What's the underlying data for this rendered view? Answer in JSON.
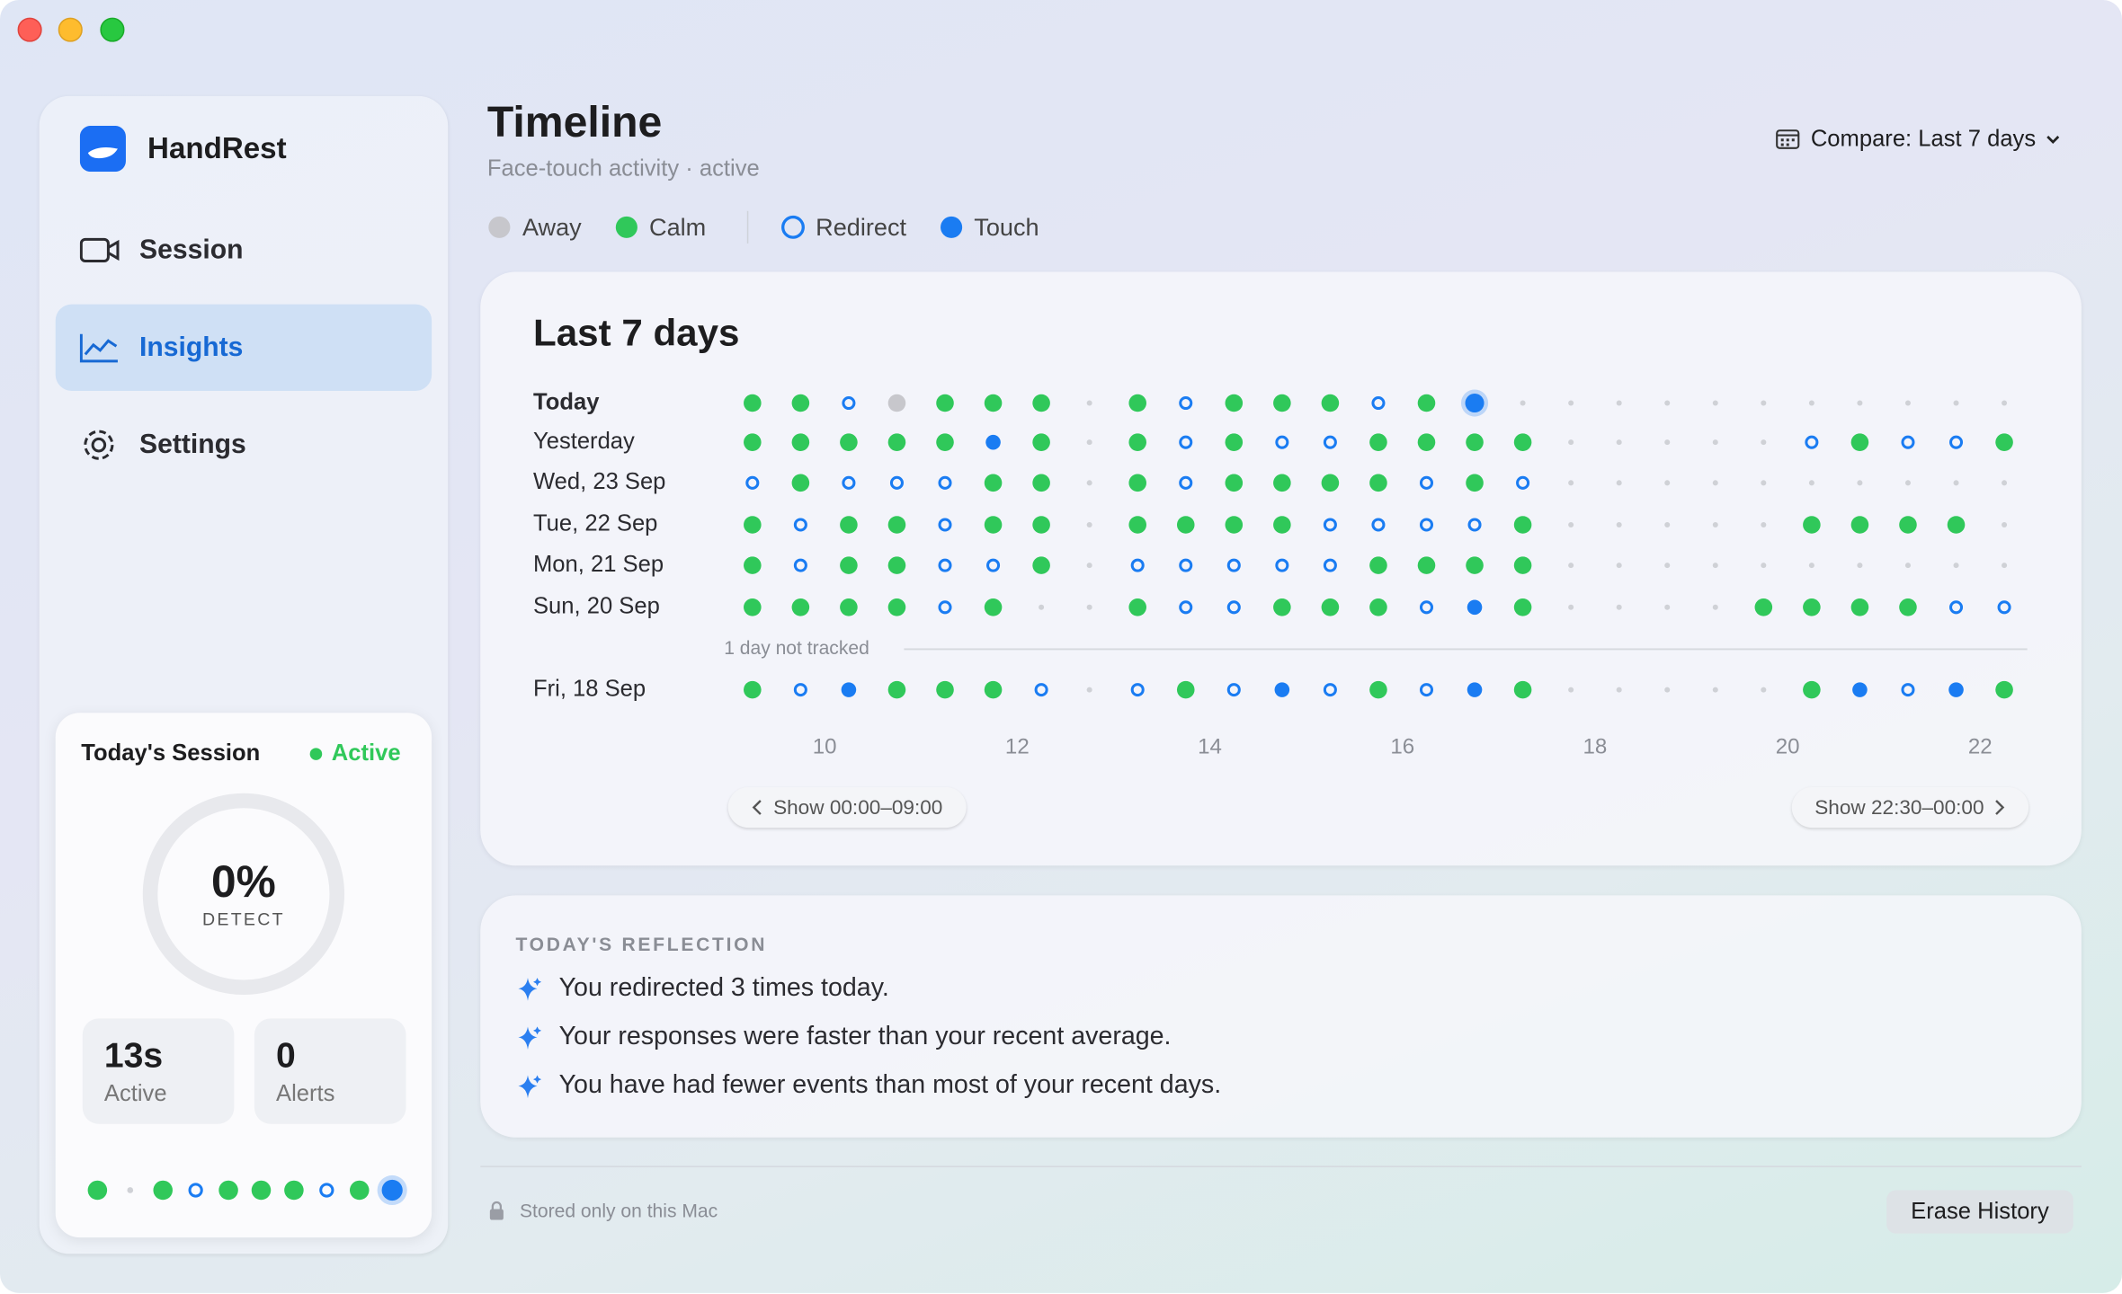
{
  "sidebar": {
    "app_name": "HandRest",
    "nav": [
      "Session",
      "Insights",
      "Settings"
    ],
    "selected": 1
  },
  "session_card": {
    "title": "Today's Session",
    "status": "Active",
    "ring_value": "0%",
    "ring_label": "DETECT",
    "stats": [
      {
        "value": "13s",
        "label": "Active"
      },
      {
        "value": "0",
        "label": "Alerts"
      }
    ],
    "dots": [
      1,
      null,
      1,
      2,
      1,
      1,
      1,
      2,
      1,
      3
    ]
  },
  "header": {
    "title": "Timeline",
    "subtitle": "Face-touch activity · active",
    "compare": "Compare: Last 7 days"
  },
  "legend": [
    {
      "name": "Away",
      "color": "#c7c7cc"
    },
    {
      "name": "Calm",
      "color": "#30c85a"
    },
    {
      "name": "Redirect",
      "color": "#1a7cf2"
    },
    {
      "name": "Touch",
      "color": "#1a7cf2"
    }
  ],
  "timeline": {
    "title": "Last 7 days",
    "xlim": [
      9,
      22.5
    ],
    "xticks": [
      10,
      12,
      14,
      16,
      18,
      20,
      22
    ],
    "rows": [
      {
        "label": "Today",
        "cells": [
          1,
          1,
          2,
          0,
          1,
          1,
          1,
          null,
          1,
          2,
          1,
          1,
          1,
          2,
          1,
          3,
          null,
          null,
          null,
          null,
          null,
          null,
          null,
          null,
          null,
          null,
          null
        ]
      },
      {
        "label": "Yesterday",
        "cells": [
          1,
          1,
          1,
          1,
          1,
          3,
          1,
          null,
          1,
          2,
          1,
          2,
          2,
          1,
          1,
          1,
          1,
          null,
          null,
          null,
          null,
          null,
          2,
          1,
          2,
          2,
          1
        ]
      },
      {
        "label": "Wed, 23 Sep",
        "cells": [
          2,
          1,
          2,
          2,
          2,
          1,
          1,
          null,
          1,
          2,
          1,
          1,
          1,
          1,
          2,
          1,
          2,
          null,
          null,
          null,
          null,
          null,
          null,
          null,
          null,
          null,
          null
        ]
      },
      {
        "label": "Tue, 22 Sep",
        "cells": [
          1,
          2,
          1,
          1,
          2,
          1,
          1,
          null,
          1,
          1,
          1,
          1,
          2,
          2,
          2,
          2,
          1,
          null,
          null,
          null,
          null,
          null,
          1,
          1,
          1,
          1,
          null
        ]
      },
      {
        "label": "Mon, 21 Sep",
        "cells": [
          1,
          2,
          1,
          1,
          2,
          2,
          1,
          null,
          2,
          2,
          2,
          2,
          2,
          1,
          1,
          1,
          1,
          null,
          null,
          null,
          null,
          null,
          null,
          null,
          null,
          null,
          null
        ]
      },
      {
        "label": "Sun, 20 Sep",
        "cells": [
          1,
          1,
          1,
          1,
          2,
          1,
          null,
          null,
          1,
          2,
          2,
          1,
          1,
          1,
          2,
          3,
          1,
          null,
          null,
          null,
          null,
          1,
          1,
          1,
          1,
          2,
          2
        ]
      },
      {
        "note": "1 day not tracked"
      },
      {
        "label": "Fri, 18 Sep",
        "cells": [
          1,
          2,
          3,
          1,
          1,
          1,
          2,
          null,
          2,
          1,
          2,
          3,
          2,
          1,
          2,
          3,
          1,
          null,
          null,
          null,
          null,
          null,
          1,
          3,
          2,
          3,
          1
        ]
      }
    ],
    "prev_button": "Show 00:00–09:00",
    "next_button": "Show 22:30–00:00"
  },
  "reflection": {
    "title": "TODAY'S REFLECTION",
    "items": [
      "You redirected 3 times today.",
      "Your responses were faster than your recent average.",
      "You have had fewer events than most of your recent days."
    ]
  },
  "footer": {
    "note": "Stored only on this Mac",
    "button": "Erase History"
  }
}
